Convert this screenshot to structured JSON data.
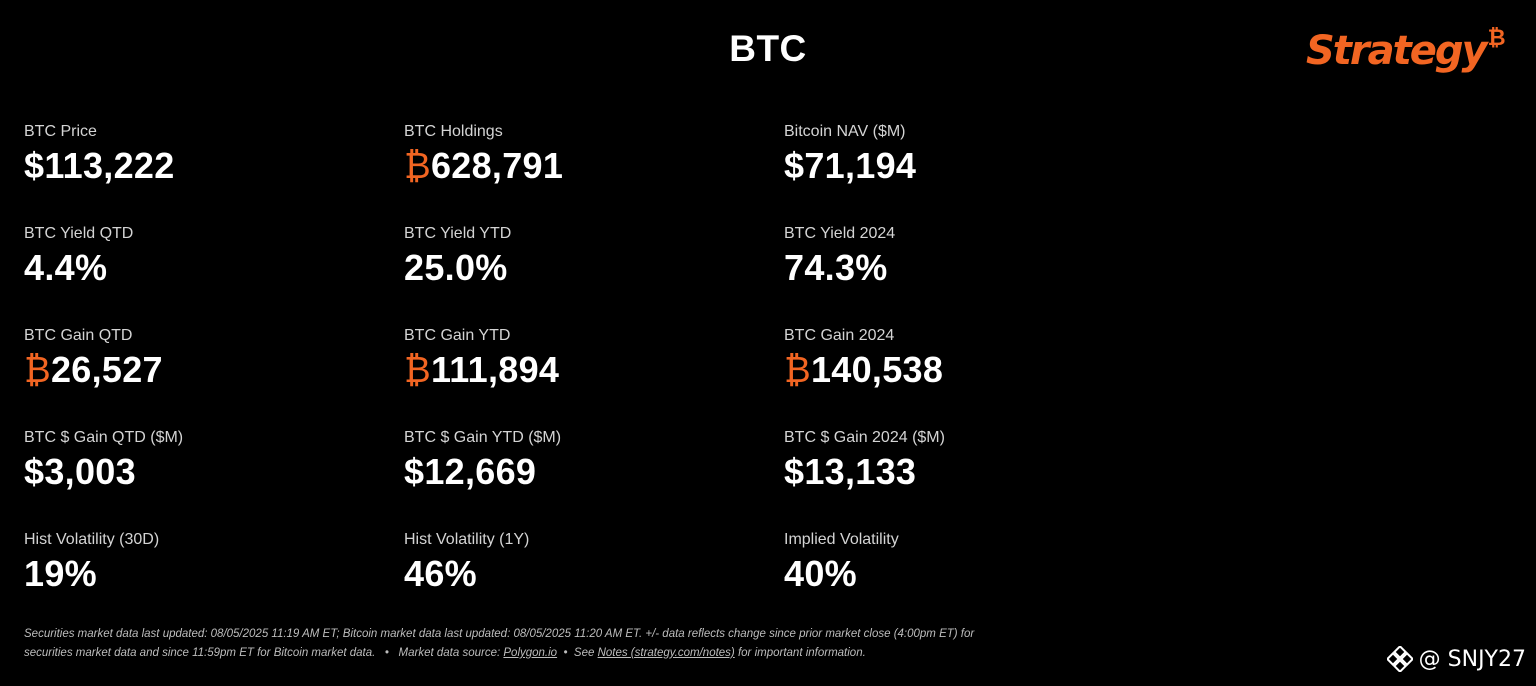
{
  "header": {
    "title": "BTC",
    "logo_text": "Strategy",
    "logo_symbol": "₿",
    "brand_color": "#f26522"
  },
  "metrics": [
    {
      "label": "BTC Price",
      "prefix": "",
      "value": "$113,222"
    },
    {
      "label": "BTC Holdings",
      "prefix": "₿",
      "value": "628,791"
    },
    {
      "label": "Bitcoin NAV ($M)",
      "prefix": "",
      "value": "$71,194"
    },
    {
      "label": "BTC Yield QTD",
      "prefix": "",
      "value": "4.4%"
    },
    {
      "label": "BTC Yield YTD",
      "prefix": "",
      "value": "25.0%"
    },
    {
      "label": "BTC Yield 2024",
      "prefix": "",
      "value": "74.3%"
    },
    {
      "label": "BTC Gain QTD",
      "prefix": "₿",
      "value": "26,527"
    },
    {
      "label": "BTC Gain YTD",
      "prefix": "₿",
      "value": "111,894"
    },
    {
      "label": "BTC Gain 2024",
      "prefix": "₿",
      "value": "140,538"
    },
    {
      "label": "BTC $ Gain QTD ($M)",
      "prefix": "",
      "value": "$3,003"
    },
    {
      "label": "BTC $ Gain YTD ($M)",
      "prefix": "",
      "value": "$12,669"
    },
    {
      "label": "BTC $ Gain 2024 ($M)",
      "prefix": "",
      "value": "$13,133"
    },
    {
      "label": "Hist Volatility (30D)",
      "prefix": "",
      "value": "19%"
    },
    {
      "label": "Hist Volatility (1Y)",
      "prefix": "",
      "value": "46%"
    },
    {
      "label": "Implied Volatility",
      "prefix": "",
      "value": "40%"
    }
  ],
  "footnote": {
    "line1": "Securities market data last updated: 08/05/2025 11:19 AM ET; Bitcoin market data last updated: 08/05/2025 11:20 AM ET. +/- data reflects change since prior market close (4:00pm ET) for",
    "line2_start": "securities market data and since 11:59pm ET for Bitcoin market data.   •   Market data source: ",
    "source_link": "Polygon.io",
    "line2_mid": "  •  See ",
    "notes_link": "Notes (strategy.com/notes)",
    "line2_end": " for important information."
  },
  "watermark": {
    "icon": "binance-icon",
    "text": "@ SNJY27"
  }
}
